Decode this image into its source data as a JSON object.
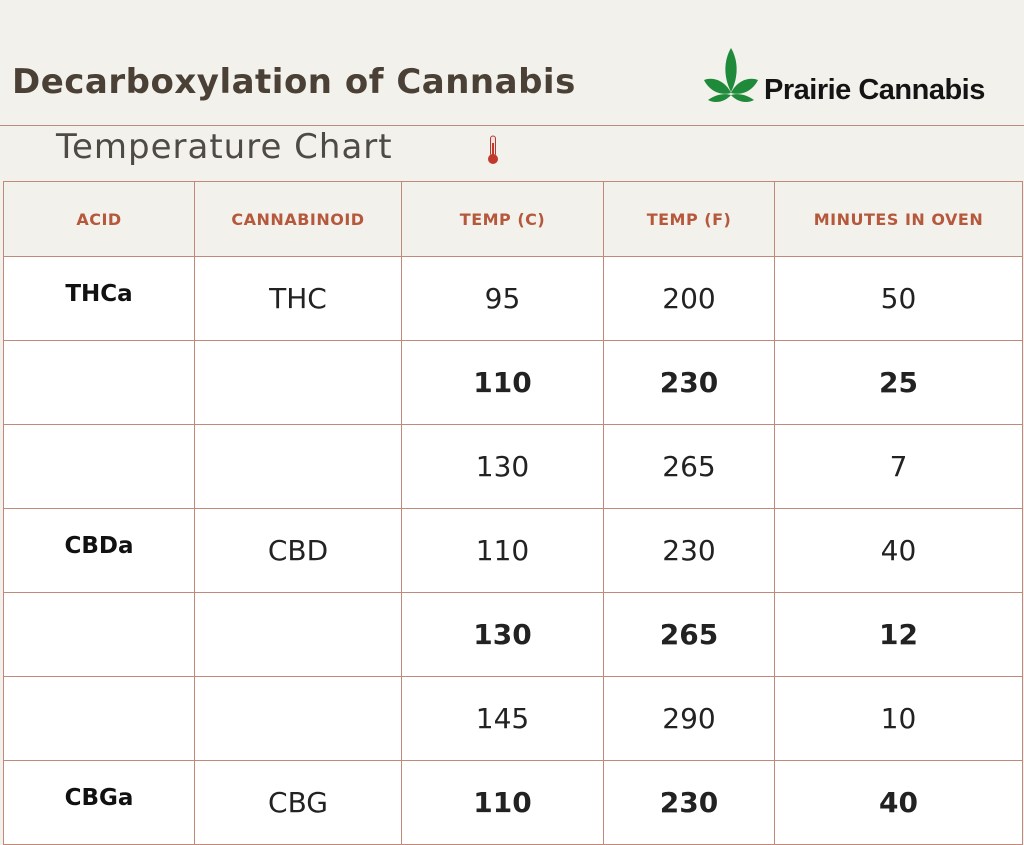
{
  "header": {
    "title": "Decarboxylation of Cannabis",
    "brand": "Prairie Cannabis",
    "subtitle": "Temperature Chart"
  },
  "colors": {
    "background": "#f2f1ec",
    "title_text": "#4a4035",
    "header_text": "#b5583b",
    "border": "#c08a78",
    "leaf_green": "#1e8a3a"
  },
  "icons": {
    "logo": "cannabis-leaf-icon",
    "subtitle": "thermometer-icon"
  },
  "table": {
    "columns": [
      "ACID",
      "CANNABINOID",
      "TEMP (C)",
      "TEMP (F)",
      "MINUTES IN OVEN"
    ],
    "rows": [
      {
        "acid": "THCa",
        "cannabinoid": "THC",
        "temp_c": "95",
        "temp_f": "200",
        "minutes": "50",
        "bold": false
      },
      {
        "acid": "",
        "cannabinoid": "",
        "temp_c": "110",
        "temp_f": "230",
        "minutes": "25",
        "bold": true
      },
      {
        "acid": "",
        "cannabinoid": "",
        "temp_c": "130",
        "temp_f": "265",
        "minutes": "7",
        "bold": false
      },
      {
        "acid": "CBDa",
        "cannabinoid": "CBD",
        "temp_c": "110",
        "temp_f": "230",
        "minutes": "40",
        "bold": false
      },
      {
        "acid": "",
        "cannabinoid": "",
        "temp_c": "130",
        "temp_f": "265",
        "minutes": "12",
        "bold": true
      },
      {
        "acid": "",
        "cannabinoid": "",
        "temp_c": "145",
        "temp_f": "290",
        "minutes": "10",
        "bold": false
      },
      {
        "acid": "CBGa",
        "cannabinoid": "CBG",
        "temp_c": "110",
        "temp_f": "230",
        "minutes": "40",
        "bold": true
      }
    ]
  }
}
